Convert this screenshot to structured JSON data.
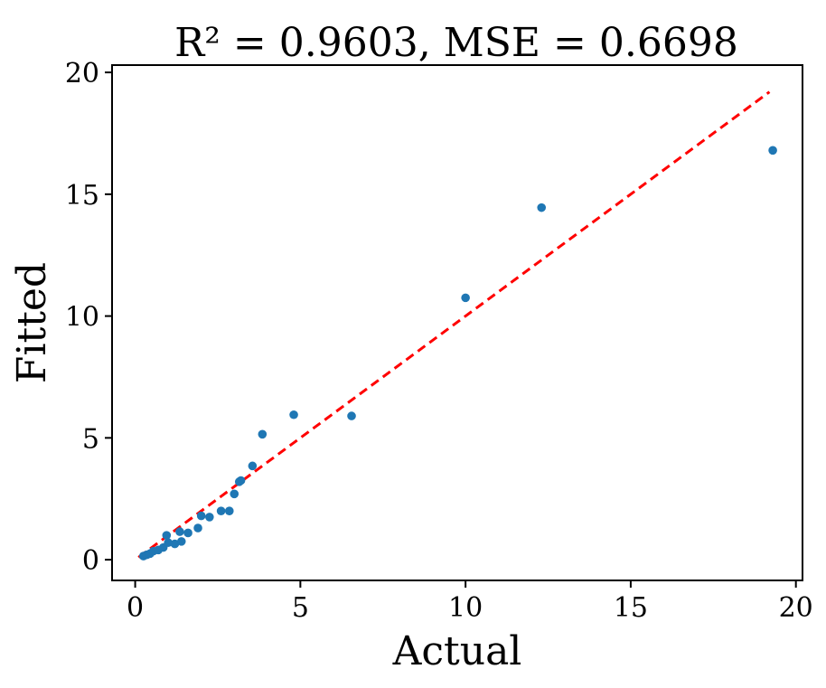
{
  "chart_data": {
    "type": "scatter",
    "title": "R² = 0.9603, MSE = 0.6698",
    "xlabel": "Actual",
    "ylabel": "Fitted",
    "xlim": [
      -0.7,
      20.2
    ],
    "ylim": [
      -0.85,
      20.3
    ],
    "xticks": [
      0,
      5,
      10,
      15,
      20
    ],
    "yticks": [
      0,
      5,
      10,
      15,
      20
    ],
    "grid": false,
    "colors": {
      "points": "#1f77b4",
      "reference_line": "#ff0000",
      "axes": "#000000"
    },
    "reference_line": {
      "style": "dashed",
      "x": [
        0.1,
        19.2
      ],
      "y": [
        0.1,
        19.2
      ]
    },
    "series": [
      {
        "x": [
          0.25,
          0.35,
          0.45,
          0.55,
          0.7,
          0.85,
          0.95,
          1.0,
          1.2,
          1.35,
          1.4,
          1.6,
          1.9,
          2.0,
          2.25,
          2.6,
          2.85,
          3.0,
          3.15,
          3.2,
          3.55,
          3.85,
          4.8,
          6.55,
          10.0,
          12.3,
          19.3
        ],
        "y": [
          0.15,
          0.2,
          0.25,
          0.35,
          0.4,
          0.5,
          1.0,
          0.7,
          0.65,
          1.15,
          0.75,
          1.1,
          1.3,
          1.8,
          1.75,
          2.0,
          2.0,
          2.7,
          3.2,
          3.25,
          3.85,
          5.15,
          5.95,
          5.9,
          10.75,
          14.45,
          16.8
        ]
      }
    ]
  }
}
